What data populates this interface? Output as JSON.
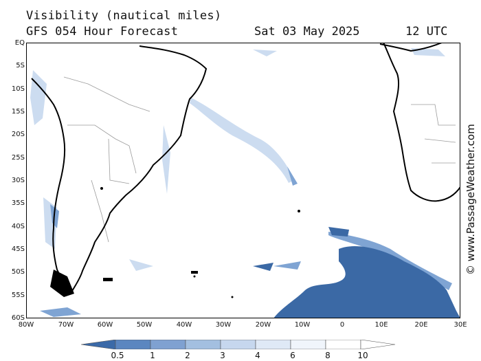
{
  "header": {
    "title": "Visibility (nautical miles)",
    "subtitle": "GFS 054 Hour Forecast",
    "date": "Sat 03 May 2025",
    "time": "12 UTC"
  },
  "map": {
    "lat_labels": [
      "EQ",
      "5S",
      "10S",
      "15S",
      "20S",
      "25S",
      "30S",
      "35S",
      "40S",
      "45S",
      "50S",
      "55S",
      "60S"
    ],
    "lon_labels": [
      "80W",
      "70W",
      "60W",
      "50W",
      "40W",
      "30W",
      "20W",
      "10W",
      "0",
      "10E",
      "20E",
      "30E"
    ],
    "colors": {
      "land_outline": "#000000",
      "borders": "#9a9a9a",
      "low_vis": "#3b69a5",
      "mid_vis": "#7fa4d3",
      "light_vis": "#c6d8ee"
    }
  },
  "legend": {
    "labels": [
      "0.5",
      "1",
      "2",
      "3",
      "4",
      "6",
      "8",
      "10"
    ],
    "colors": [
      "#3b6aa8",
      "#5b86c0",
      "#7fa1d1",
      "#a3bfe0",
      "#c6d7ee",
      "#dfe9f6",
      "#f0f5fb",
      "#ffffff"
    ]
  },
  "watermark": "© www.PassageWeather.com"
}
